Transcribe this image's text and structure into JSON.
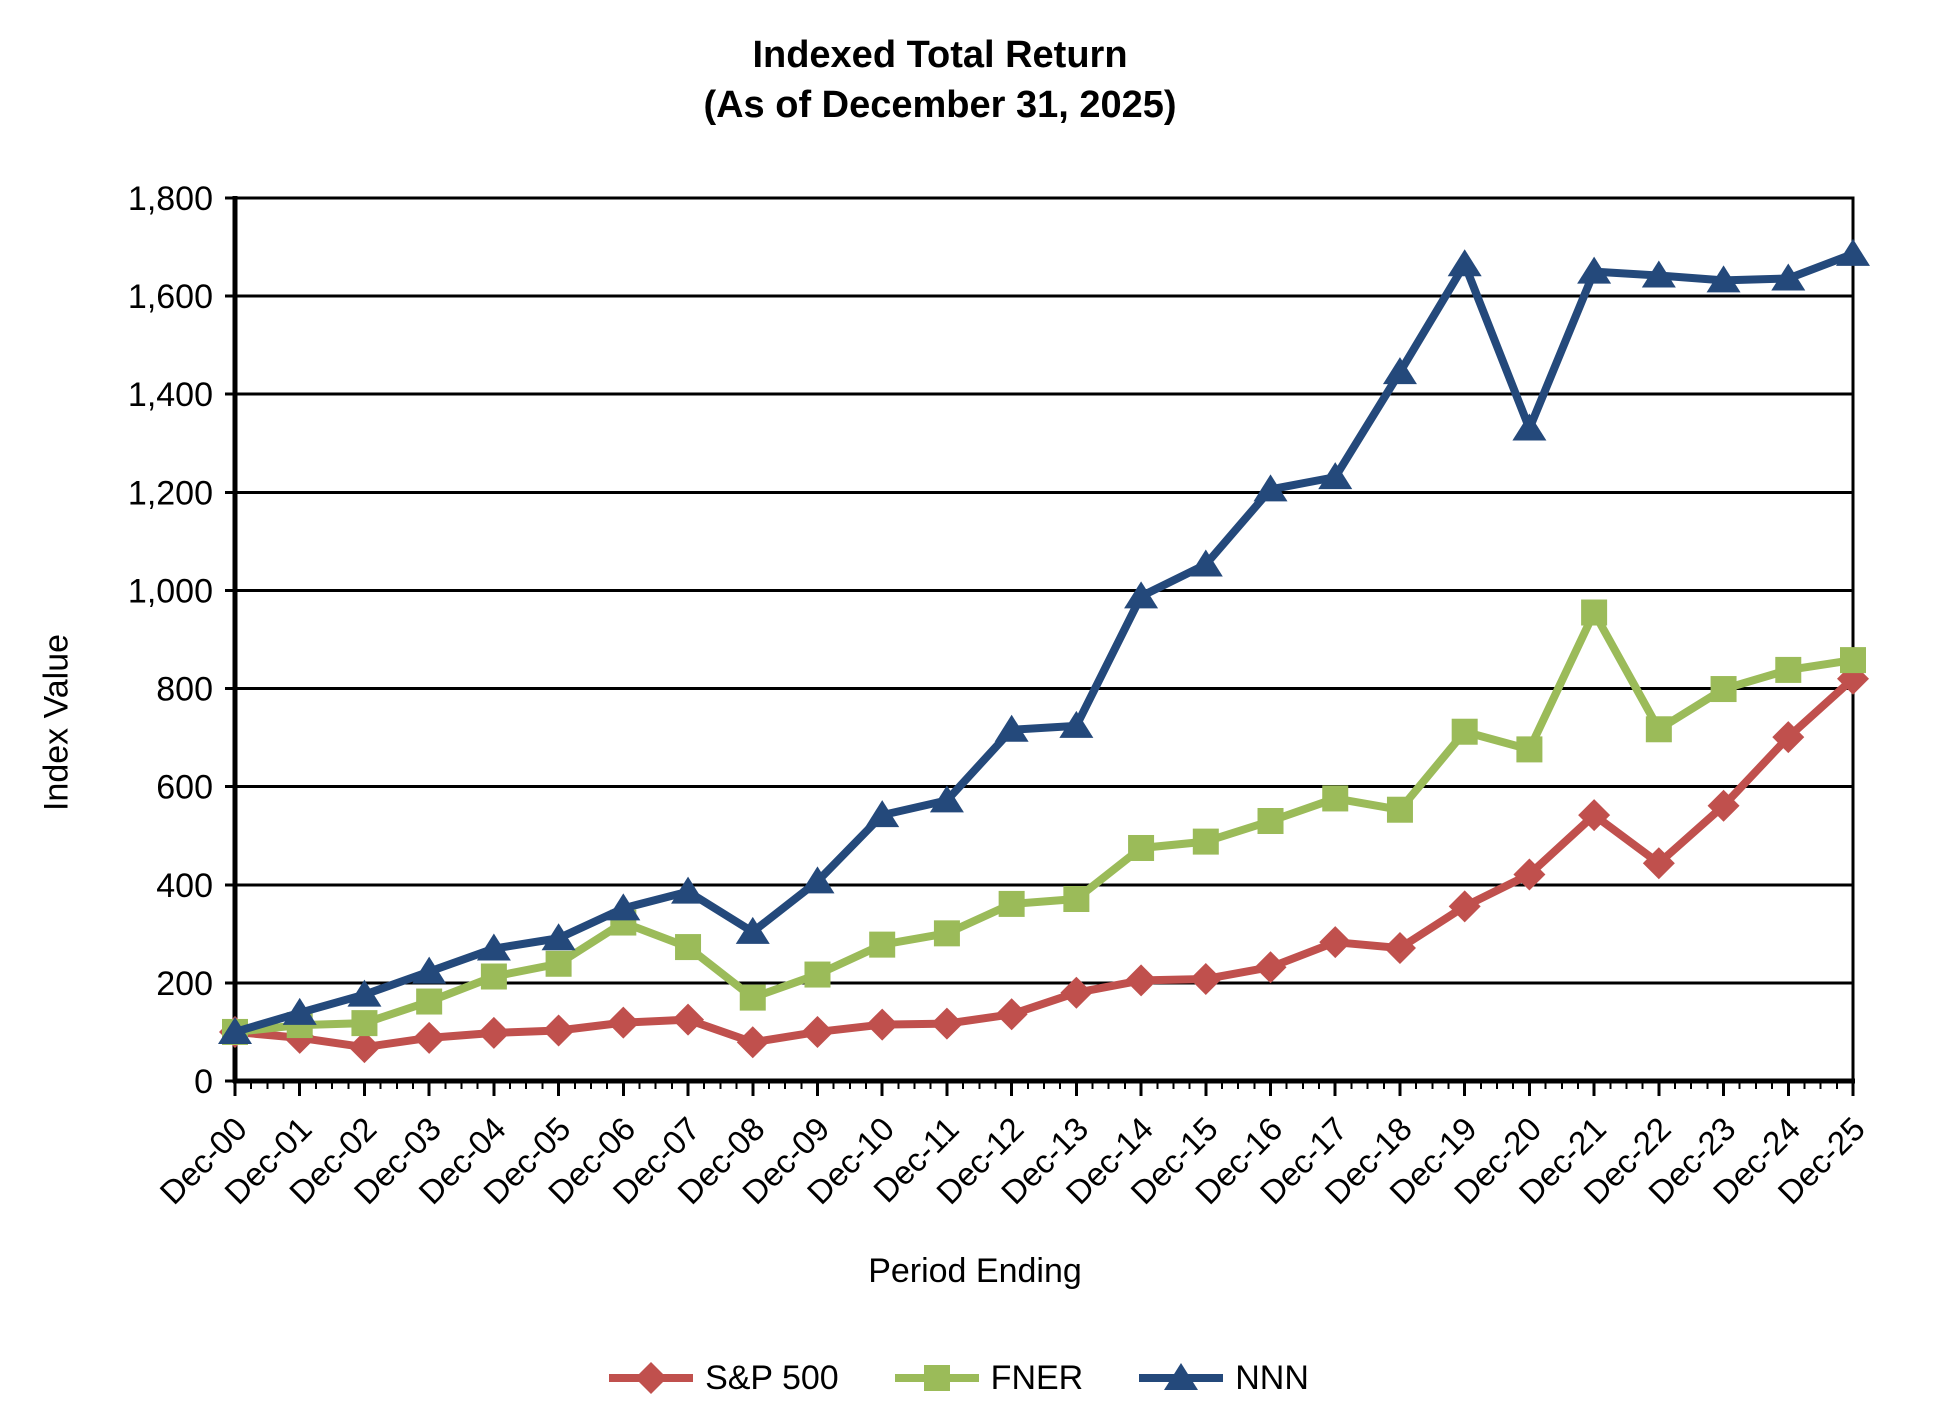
{
  "chart_data": {
    "type": "line",
    "title": "Indexed Total Return",
    "subtitle": "(As of December 31, 2025)",
    "xlabel": "Period Ending",
    "ylabel": "Index Value",
    "ylim": [
      0,
      1800
    ],
    "ytick_step": 200,
    "grid": "horizontal",
    "legend_position": "bottom",
    "xtick_rotation": 45,
    "x_minor_ticks_per_interval": 4,
    "categories": [
      "Dec-00",
      "Dec-01",
      "Dec-02",
      "Dec-03",
      "Dec-04",
      "Dec-05",
      "Dec-06",
      "Dec-07",
      "Dec-08",
      "Dec-09",
      "Dec-10",
      "Dec-11",
      "Dec-12",
      "Dec-13",
      "Dec-14",
      "Dec-15",
      "Dec-16",
      "Dec-17",
      "Dec-18",
      "Dec-19",
      "Dec-20",
      "Dec-21",
      "Dec-22",
      "Dec-23",
      "Dec-24",
      "Dec-25"
    ],
    "series": [
      {
        "name": "S&P 500",
        "marker": "diamond",
        "color": "#C0504D",
        "values": [
          100,
          88,
          69,
          88,
          98,
          103,
          119,
          125,
          79,
          100,
          115,
          117,
          136,
          180,
          205,
          208,
          232,
          283,
          271,
          356,
          421,
          542,
          444,
          561,
          701,
          820
        ]
      },
      {
        "name": "FNER",
        "marker": "square",
        "color": "#9BBB59",
        "values": [
          100,
          114,
          118,
          162,
          213,
          239,
          323,
          273,
          170,
          217,
          278,
          301,
          361,
          371,
          475,
          488,
          530,
          576,
          553,
          712,
          676,
          955,
          717,
          799,
          838,
          858
        ]
      },
      {
        "name": "NNN",
        "marker": "triangle",
        "color": "#24497B",
        "values": [
          100,
          139,
          176,
          223,
          270,
          291,
          352,
          386,
          304,
          407,
          542,
          572,
          716,
          724,
          988,
          1053,
          1206,
          1231,
          1445,
          1665,
          1330,
          1650,
          1642,
          1632,
          1636,
          1686
        ]
      }
    ]
  }
}
